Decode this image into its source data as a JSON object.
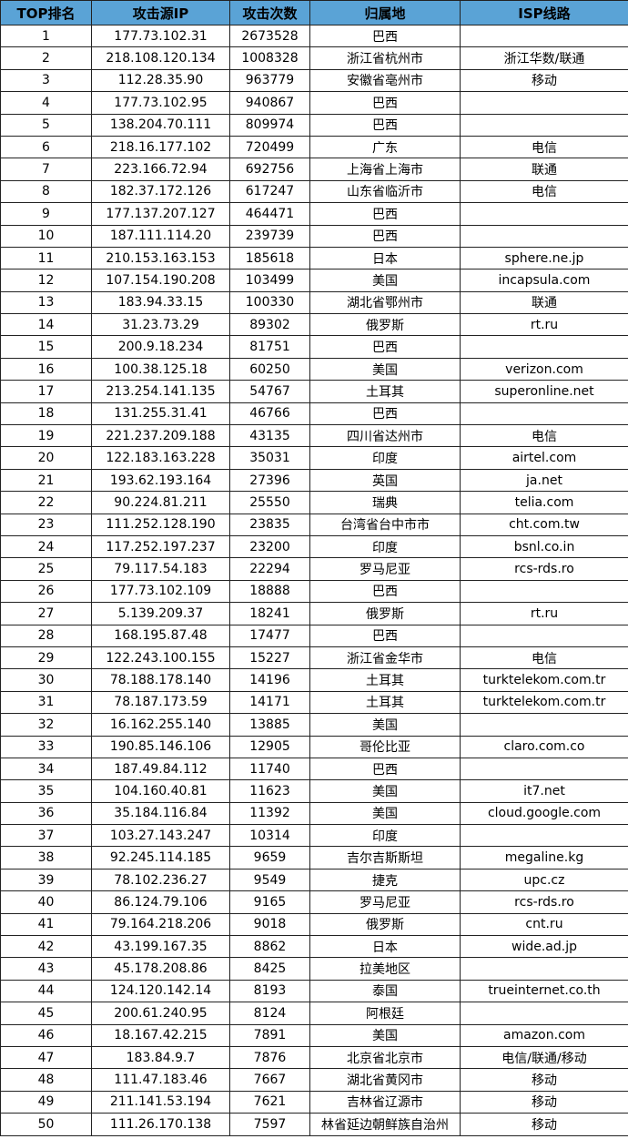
{
  "table": {
    "header": [
      "TOP排名",
      "攻击源IP",
      "攻击次数",
      "归属地",
      "ISP线路"
    ],
    "rows": [
      [
        1,
        "177.73.102.31",
        2673528,
        "巴西",
        null
      ],
      [
        2,
        "218.108.120.134",
        1008328,
        "浙江省杭州市",
        "浙江华数/联通"
      ],
      [
        3,
        "112.28.35.90",
        963779,
        "安徽省亳州市",
        "移动"
      ],
      [
        4,
        "177.73.102.95",
        940867,
        "巴西",
        null
      ],
      [
        5,
        "138.204.70.111",
        809974,
        "巴西",
        null
      ],
      [
        6,
        "218.16.177.102",
        720499,
        "广东",
        "电信"
      ],
      [
        7,
        "223.166.72.94",
        692756,
        "上海省上海市",
        "联通"
      ],
      [
        8,
        "182.37.172.126",
        617247,
        "山东省临沂市",
        "电信"
      ],
      [
        9,
        "177.137.207.127",
        464471,
        "巴西",
        null
      ],
      [
        10,
        "187.111.114.20",
        239739,
        "巴西",
        null
      ],
      [
        11,
        "210.153.163.153",
        185618,
        "日本",
        "sphere.ne.jp"
      ],
      [
        12,
        "107.154.190.208",
        103499,
        "美国",
        "incapsula.com"
      ],
      [
        13,
        "183.94.33.15",
        100330,
        "湖北省鄂州市",
        "联通"
      ],
      [
        14,
        "31.23.73.29",
        89302,
        "俄罗斯",
        "rt.ru"
      ],
      [
        15,
        "200.9.18.234",
        81751,
        "巴西",
        null
      ],
      [
        16,
        "100.38.125.18",
        60250,
        "美国",
        "verizon.com"
      ],
      [
        17,
        "213.254.141.135",
        54767,
        "土耳其",
        "superonline.net"
      ],
      [
        18,
        "131.255.31.41",
        46766,
        "巴西",
        null
      ],
      [
        19,
        "221.237.209.188",
        43135,
        "四川省达州市",
        "电信"
      ],
      [
        20,
        "122.183.163.228",
        35031,
        "印度",
        "airtel.com"
      ],
      [
        21,
        "193.62.193.164",
        27396,
        "英国",
        "ja.net"
      ],
      [
        22,
        "90.224.81.211",
        25550,
        "瑞典",
        "telia.com"
      ],
      [
        23,
        "111.252.128.190",
        23835,
        "台湾省台中市市",
        "cht.com.tw"
      ],
      [
        24,
        "117.252.197.237",
        23200,
        "印度",
        "bsnl.co.in"
      ],
      [
        25,
        "79.117.54.183",
        22294,
        "罗马尼亚",
        "rcs-rds.ro"
      ],
      [
        26,
        "177.73.102.109",
        18888,
        "巴西",
        null
      ],
      [
        27,
        "5.139.209.37",
        18241,
        "俄罗斯",
        "rt.ru"
      ],
      [
        28,
        "168.195.87.48",
        17477,
        "巴西",
        null
      ],
      [
        29,
        "122.243.100.155",
        15227,
        "浙江省金华市",
        "电信"
      ],
      [
        30,
        "78.188.178.140",
        14196,
        "土耳其",
        "turktelekom.com.tr"
      ],
      [
        31,
        "78.187.173.59",
        14171,
        "土耳其",
        "turktelekom.com.tr"
      ],
      [
        32,
        "16.162.255.140",
        13885,
        "美国",
        null
      ],
      [
        33,
        "190.85.146.106",
        12905,
        "哥伦比亚",
        "claro.com.co"
      ],
      [
        34,
        "187.49.84.112",
        11740,
        "巴西",
        null
      ],
      [
        35,
        "104.160.40.81",
        11623,
        "美国",
        "it7.net"
      ],
      [
        36,
        "35.184.116.84",
        11392,
        "美国",
        "cloud.google.com"
      ],
      [
        37,
        "103.27.143.247",
        10314,
        "印度",
        null
      ],
      [
        38,
        "92.245.114.185",
        9659,
        "吉尔吉斯斯坦",
        "megaline.kg"
      ],
      [
        39,
        "78.102.236.27",
        9549,
        "捷克",
        "upc.cz"
      ],
      [
        40,
        "86.124.79.106",
        9165,
        "罗马尼亚",
        "rcs-rds.ro"
      ],
      [
        41,
        "79.164.218.206",
        9018,
        "俄罗斯",
        "cnt.ru"
      ],
      [
        42,
        "43.199.167.35",
        8862,
        "日本",
        "wide.ad.jp"
      ],
      [
        43,
        "45.178.208.86",
        8425,
        "拉美地区",
        null
      ],
      [
        44,
        "124.120.142.14",
        8193,
        "泰国",
        "trueinternet.co.th"
      ],
      [
        45,
        "200.61.240.95",
        8124,
        "阿根廷",
        null
      ],
      [
        46,
        "18.167.42.215",
        7891,
        "美国",
        "amazon.com"
      ],
      [
        47,
        "183.84.9.7",
        7876,
        "北京省北京市",
        "电信/联通/移动"
      ],
      [
        48,
        "111.47.183.46",
        7667,
        "湖北省黄冈市",
        "移动"
      ],
      [
        49,
        "211.141.53.194",
        7621,
        "吉林省辽源市",
        "移动"
      ],
      [
        50,
        "111.26.170.138",
        7597,
        "林省延边朝鲜族自治州",
        "移动"
      ]
    ]
  }
}
